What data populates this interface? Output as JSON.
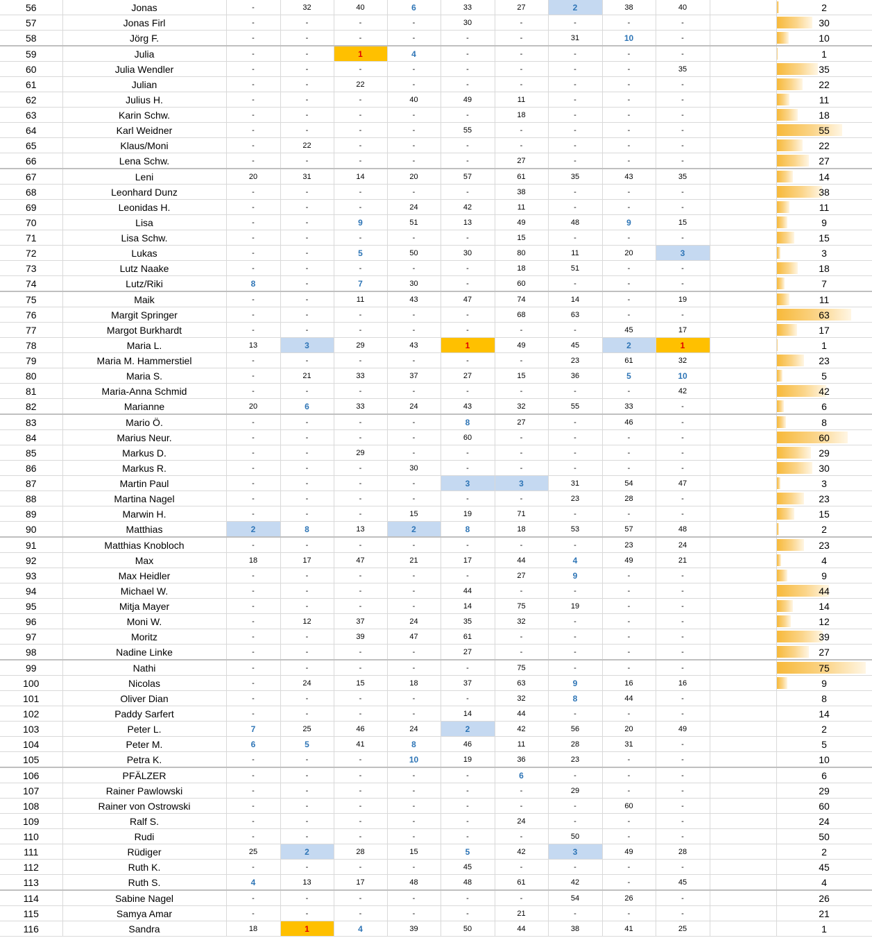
{
  "bar_max": 80,
  "rows": [
    {
      "idx": "56",
      "name": "Jonas",
      "cells": [
        "-",
        "32",
        "40",
        "6",
        "33",
        "27",
        "2",
        "38",
        "40"
      ],
      "total": "2"
    },
    {
      "idx": "57",
      "name": "Jonas Firl",
      "cells": [
        "-",
        "-",
        "-",
        "-",
        "30",
        "-",
        "-",
        "-",
        "-"
      ],
      "total": "30"
    },
    {
      "idx": "58",
      "name": "Jörg F.",
      "cells": [
        "-",
        "-",
        "-",
        "-",
        "-",
        "-",
        "31",
        "10",
        "-"
      ],
      "total": "10"
    },
    {
      "idx": "59",
      "name": "Julia",
      "cells": [
        "-",
        "-",
        "1",
        "4",
        "-",
        "-",
        "-",
        "-",
        "-"
      ],
      "total": "1"
    },
    {
      "idx": "60",
      "name": "Julia Wendler",
      "cells": [
        "-",
        "-",
        "-",
        "-",
        "-",
        "-",
        "-",
        "-",
        "35"
      ],
      "total": "35"
    },
    {
      "idx": "61",
      "name": "Julian",
      "cells": [
        "-",
        "-",
        "22",
        "-",
        "-",
        "-",
        "-",
        "-",
        "-"
      ],
      "total": "22"
    },
    {
      "idx": "62",
      "name": "Julius H.",
      "cells": [
        "-",
        "-",
        "-",
        "40",
        "49",
        "11",
        "-",
        "-",
        "-"
      ],
      "total": "11"
    },
    {
      "idx": "63",
      "name": "Karin Schw.",
      "cells": [
        "-",
        "-",
        "-",
        "-",
        "-",
        "18",
        "-",
        "-",
        "-"
      ],
      "total": "18"
    },
    {
      "idx": "64",
      "name": "Karl Weidner",
      "cells": [
        "-",
        "-",
        "-",
        "-",
        "55",
        "-",
        "-",
        "-",
        "-"
      ],
      "total": "55"
    },
    {
      "idx": "65",
      "name": "Klaus/Moni",
      "cells": [
        "-",
        "22",
        "-",
        "-",
        "-",
        "-",
        "-",
        "-",
        "-"
      ],
      "total": "22"
    },
    {
      "idx": "66",
      "name": "Lena Schw.",
      "cells": [
        "-",
        "-",
        "-",
        "-",
        "-",
        "27",
        "-",
        "-",
        "-"
      ],
      "total": "27"
    },
    {
      "idx": "67",
      "name": "Leni",
      "cells": [
        "20",
        "31",
        "14",
        "20",
        "57",
        "61",
        "35",
        "43",
        "35"
      ],
      "total": "14"
    },
    {
      "idx": "68",
      "name": "Leonhard Dunz",
      "cells": [
        "-",
        "-",
        "-",
        "-",
        "-",
        "38",
        "-",
        "-",
        "-"
      ],
      "total": "38"
    },
    {
      "idx": "69",
      "name": "Leonidas H.",
      "cells": [
        "-",
        "-",
        "-",
        "24",
        "42",
        "11",
        "-",
        "-",
        "-"
      ],
      "total": "11"
    },
    {
      "idx": "70",
      "name": "Lisa",
      "cells": [
        "-",
        "-",
        "9",
        "51",
        "13",
        "49",
        "48",
        "9",
        "15"
      ],
      "total": "9"
    },
    {
      "idx": "71",
      "name": "Lisa Schw.",
      "cells": [
        "-",
        "-",
        "-",
        "-",
        "-",
        "15",
        "-",
        "-",
        "-"
      ],
      "total": "15"
    },
    {
      "idx": "72",
      "name": "Lukas",
      "cells": [
        "-",
        "-",
        "5",
        "50",
        "30",
        "80",
        "11",
        "20",
        "3"
      ],
      "total": "3"
    },
    {
      "idx": "73",
      "name": "Lutz Naake",
      "cells": [
        "-",
        "-",
        "-",
        "-",
        "-",
        "18",
        "51",
        "-",
        "-"
      ],
      "total": "18"
    },
    {
      "idx": "74",
      "name": "Lutz/Riki",
      "cells": [
        "8",
        "-",
        "7",
        "30",
        "-",
        "60",
        "-",
        "-",
        "-"
      ],
      "total": "7"
    },
    {
      "idx": "75",
      "name": "Maik",
      "cells": [
        "-",
        "-",
        "11",
        "43",
        "47",
        "74",
        "14",
        "-",
        "19"
      ],
      "total": "11"
    },
    {
      "idx": "76",
      "name": "Margit Springer",
      "cells": [
        "-",
        "-",
        "-",
        "-",
        "-",
        "68",
        "63",
        "-",
        "-"
      ],
      "total": "63"
    },
    {
      "idx": "77",
      "name": "Margot Burkhardt",
      "cells": [
        "-",
        "-",
        "-",
        "-",
        "-",
        "-",
        "-",
        "45",
        "17"
      ],
      "total": "17"
    },
    {
      "idx": "78",
      "name": "Maria L.",
      "cells": [
        "13",
        "3",
        "29",
        "43",
        "1",
        "49",
        "45",
        "2",
        "1"
      ],
      "total": "1"
    },
    {
      "idx": "79",
      "name": "Maria M. Hammerstiel",
      "cells": [
        "-",
        "-",
        "-",
        "-",
        "-",
        "-",
        "23",
        "61",
        "32"
      ],
      "total": "23"
    },
    {
      "idx": "80",
      "name": "Maria S.",
      "cells": [
        "-",
        "21",
        "33",
        "37",
        "27",
        "15",
        "36",
        "5",
        "10"
      ],
      "total": "5"
    },
    {
      "idx": "81",
      "name": "Maria-Anna Schmid",
      "cells": [
        "-",
        "-",
        "-",
        "-",
        "-",
        "-",
        "-",
        "-",
        "42"
      ],
      "total": "42"
    },
    {
      "idx": "82",
      "name": "Marianne",
      "cells": [
        "20",
        "6",
        "33",
        "24",
        "43",
        "32",
        "55",
        "33",
        "-"
      ],
      "total": "6"
    },
    {
      "idx": "83",
      "name": "Mario Ö.",
      "cells": [
        "-",
        "-",
        "-",
        "-",
        "8",
        "27",
        "-",
        "46",
        "-"
      ],
      "total": "8"
    },
    {
      "idx": "84",
      "name": "Marius Neur.",
      "cells": [
        "-",
        "-",
        "-",
        "-",
        "60",
        "-",
        "-",
        "-",
        "-"
      ],
      "total": "60"
    },
    {
      "idx": "85",
      "name": "Markus D.",
      "cells": [
        "-",
        "-",
        "29",
        "-",
        "-",
        "-",
        "-",
        "-",
        "-"
      ],
      "total": "29"
    },
    {
      "idx": "86",
      "name": "Markus R.",
      "cells": [
        "-",
        "-",
        "-",
        "30",
        "-",
        "-",
        "-",
        "-",
        "-"
      ],
      "total": "30"
    },
    {
      "idx": "87",
      "name": "Martin Paul",
      "cells": [
        "-",
        "-",
        "-",
        "-",
        "3",
        "3",
        "31",
        "54",
        "47"
      ],
      "total": "3"
    },
    {
      "idx": "88",
      "name": "Martina Nagel",
      "cells": [
        "-",
        "-",
        "-",
        "-",
        "-",
        "-",
        "23",
        "28",
        "-"
      ],
      "total": "23"
    },
    {
      "idx": "89",
      "name": "Marwin H.",
      "cells": [
        "-",
        "-",
        "-",
        "15",
        "19",
        "71",
        "-",
        "-",
        "-"
      ],
      "total": "15"
    },
    {
      "idx": "90",
      "name": "Matthias",
      "cells": [
        "2",
        "8",
        "13",
        "2",
        "8",
        "18",
        "53",
        "57",
        "48"
      ],
      "total": "2"
    },
    {
      "idx": "91",
      "name": "Matthias Knobloch",
      "cells": [
        "-",
        "-",
        "-",
        "-",
        "-",
        "-",
        "-",
        "23",
        "24"
      ],
      "total": "23"
    },
    {
      "idx": "92",
      "name": "Max",
      "cells": [
        "18",
        "17",
        "47",
        "21",
        "17",
        "44",
        "4",
        "49",
        "21"
      ],
      "total": "4"
    },
    {
      "idx": "93",
      "name": "Max Heidler",
      "cells": [
        "-",
        "-",
        "-",
        "-",
        "-",
        "27",
        "9",
        "-",
        "-"
      ],
      "total": "9"
    },
    {
      "idx": "94",
      "name": "Michael W.",
      "cells": [
        "-",
        "-",
        "-",
        "-",
        "44",
        "-",
        "-",
        "-",
        "-"
      ],
      "total": "44"
    },
    {
      "idx": "95",
      "name": "Mitja Mayer",
      "cells": [
        "-",
        "-",
        "-",
        "-",
        "14",
        "75",
        "19",
        "-",
        "-"
      ],
      "total": "14"
    },
    {
      "idx": "96",
      "name": "Moni W.",
      "cells": [
        "-",
        "12",
        "37",
        "24",
        "35",
        "32",
        "-",
        "-",
        "-"
      ],
      "total": "12"
    },
    {
      "idx": "97",
      "name": "Moritz",
      "cells": [
        "-",
        "-",
        "39",
        "47",
        "61",
        "-",
        "-",
        "-",
        "-"
      ],
      "total": "39"
    },
    {
      "idx": "98",
      "name": "Nadine Linke",
      "cells": [
        "-",
        "-",
        "-",
        "-",
        "27",
        "-",
        "-",
        "-",
        "-"
      ],
      "total": "27"
    },
    {
      "idx": "99",
      "name": "Nathi",
      "cells": [
        "-",
        "-",
        "-",
        "-",
        "-",
        "75",
        "-",
        "-",
        "-"
      ],
      "total": "75"
    },
    {
      "idx": "100",
      "name": "Nicolas",
      "cells": [
        "-",
        "24",
        "15",
        "18",
        "37",
        "63",
        "9",
        "16",
        "16"
      ],
      "total": "9"
    },
    {
      "idx": "101",
      "name": "Oliver Dian",
      "cells": [
        "-",
        "-",
        "-",
        "-",
        "-",
        "32",
        "8",
        "44",
        "-"
      ],
      "total": "8"
    },
    {
      "idx": "102",
      "name": "Paddy Sarfert",
      "cells": [
        "-",
        "-",
        "-",
        "-",
        "14",
        "44",
        "-",
        "-",
        "-"
      ],
      "total": "14"
    },
    {
      "idx": "103",
      "name": "Peter L.",
      "cells": [
        "7",
        "25",
        "46",
        "24",
        "2",
        "42",
        "56",
        "20",
        "49"
      ],
      "total": "2"
    },
    {
      "idx": "104",
      "name": "Peter M.",
      "cells": [
        "6",
        "5",
        "41",
        "8",
        "46",
        "11",
        "28",
        "31",
        "-"
      ],
      "total": "5"
    },
    {
      "idx": "105",
      "name": "Petra K.",
      "cells": [
        "-",
        "-",
        "-",
        "10",
        "19",
        "36",
        "23",
        "-",
        "-"
      ],
      "total": "10"
    },
    {
      "idx": "106",
      "name": "PFÄLZER",
      "cells": [
        "-",
        "-",
        "-",
        "-",
        "-",
        "6",
        "-",
        "-",
        "-"
      ],
      "total": "6"
    },
    {
      "idx": "107",
      "name": "Rainer Pawlowski",
      "cells": [
        "-",
        "-",
        "-",
        "-",
        "-",
        "-",
        "29",
        "-",
        "-"
      ],
      "total": "29"
    },
    {
      "idx": "108",
      "name": "Rainer von Ostrowski",
      "cells": [
        "-",
        "-",
        "-",
        "-",
        "-",
        "-",
        "-",
        "60",
        "-"
      ],
      "total": "60"
    },
    {
      "idx": "109",
      "name": "Ralf S.",
      "cells": [
        "-",
        "-",
        "-",
        "-",
        "-",
        "24",
        "-",
        "-",
        "-"
      ],
      "total": "24"
    },
    {
      "idx": "110",
      "name": "Rudi",
      "cells": [
        "-",
        "-",
        "-",
        "-",
        "-",
        "-",
        "50",
        "-",
        "-"
      ],
      "total": "50"
    },
    {
      "idx": "111",
      "name": "Rüdiger",
      "cells": [
        "25",
        "2",
        "28",
        "15",
        "5",
        "42",
        "3",
        "49",
        "28"
      ],
      "total": "2"
    },
    {
      "idx": "112",
      "name": "Ruth K.",
      "cells": [
        "-",
        "-",
        "-",
        "-",
        "45",
        "-",
        "-",
        "-",
        "-"
      ],
      "total": "45"
    },
    {
      "idx": "113",
      "name": "Ruth S.",
      "cells": [
        "4",
        "13",
        "17",
        "48",
        "48",
        "61",
        "42",
        "-",
        "45"
      ],
      "total": "4"
    },
    {
      "idx": "114",
      "name": "Sabine Nagel",
      "cells": [
        "-",
        "-",
        "-",
        "-",
        "-",
        "-",
        "54",
        "26",
        "-"
      ],
      "total": "26"
    },
    {
      "idx": "115",
      "name": "Samya Amar",
      "cells": [
        "-",
        "-",
        "-",
        "-",
        "-",
        "21",
        "-",
        "-",
        "-"
      ],
      "total": "21"
    },
    {
      "idx": "116",
      "name": "Sandra",
      "cells": [
        "18",
        "1",
        "4",
        "39",
        "50",
        "44",
        "38",
        "41",
        "25"
      ],
      "total": "1"
    }
  ]
}
